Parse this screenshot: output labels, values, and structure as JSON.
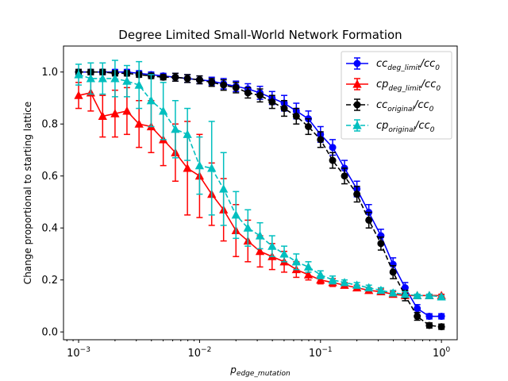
{
  "chart_data": {
    "type": "line",
    "title": "Degree Limited Small-World Network Formation",
    "xlabel": "p",
    "xlabel_sub": "edge_mutation",
    "ylabel": "Change proportional to starting lattice",
    "xscale": "log",
    "xlim": [
      0.00075,
      1.35
    ],
    "ylim": [
      -0.03,
      1.1
    ],
    "grid": false,
    "legend_position": "top-right",
    "x_tick_labels": [
      {
        "value": 0.001,
        "base": "10",
        "exp": "−3"
      },
      {
        "value": 0.01,
        "base": "10",
        "exp": "−2"
      },
      {
        "value": 0.1,
        "base": "10",
        "exp": "−1"
      },
      {
        "value": 1,
        "base": "10",
        "exp": "0"
      }
    ],
    "y_ticks": [
      0.0,
      0.2,
      0.4,
      0.6,
      0.8,
      1.0
    ],
    "y_tick_labels": [
      "0.0",
      "0.2",
      "0.4",
      "0.6",
      "0.8",
      "1.0"
    ],
    "x": [
      0.001,
      0.00126,
      0.00158,
      0.002,
      0.00251,
      0.00316,
      0.00398,
      0.00501,
      0.00631,
      0.00794,
      0.01,
      0.0126,
      0.0158,
      0.02,
      0.0251,
      0.0316,
      0.0398,
      0.0501,
      0.0631,
      0.0794,
      0.1,
      0.126,
      0.158,
      0.2,
      0.251,
      0.316,
      0.398,
      0.501,
      0.631,
      0.794,
      1.0
    ],
    "series": [
      {
        "legend_main": "cc",
        "legend_sub": "deg_limit",
        "legend_tail": "/cc",
        "legend_tail_sub": "0",
        "color": "#0000ff",
        "marker": "circle",
        "linestyle": "solid",
        "y": [
          1.0,
          1.0,
          1.0,
          1.0,
          1.0,
          0.995,
          0.99,
          0.985,
          0.98,
          0.975,
          0.97,
          0.965,
          0.955,
          0.945,
          0.935,
          0.92,
          0.9,
          0.88,
          0.85,
          0.82,
          0.76,
          0.71,
          0.63,
          0.55,
          0.46,
          0.37,
          0.26,
          0.17,
          0.09,
          0.06,
          0.06
        ],
        "err": [
          0.01,
          0.01,
          0.01,
          0.01,
          0.01,
          0.01,
          0.01,
          0.01,
          0.015,
          0.015,
          0.015,
          0.015,
          0.02,
          0.02,
          0.02,
          0.025,
          0.025,
          0.03,
          0.03,
          0.03,
          0.03,
          0.03,
          0.03,
          0.03,
          0.03,
          0.025,
          0.025,
          0.02,
          0.015,
          0.01,
          0.01
        ]
      },
      {
        "legend_main": "cp",
        "legend_sub": "deg_limit",
        "legend_tail": "/cc",
        "legend_tail_sub": "0",
        "color": "#ff0000",
        "marker": "triangle",
        "linestyle": "solid",
        "y": [
          0.91,
          0.92,
          0.83,
          0.84,
          0.85,
          0.8,
          0.79,
          0.74,
          0.69,
          0.63,
          0.6,
          0.53,
          0.47,
          0.39,
          0.35,
          0.31,
          0.29,
          0.27,
          0.24,
          0.22,
          0.2,
          0.19,
          0.18,
          0.17,
          0.16,
          0.155,
          0.145,
          0.14,
          0.14,
          0.14,
          0.14
        ],
        "err": [
          0.05,
          0.07,
          0.08,
          0.09,
          0.09,
          0.09,
          0.1,
          0.1,
          0.11,
          0.18,
          0.16,
          0.12,
          0.12,
          0.1,
          0.08,
          0.06,
          0.05,
          0.04,
          0.03,
          0.02,
          0.015,
          0.015,
          0.01,
          0.01,
          0.01,
          0.01,
          0.01,
          0.01,
          0.005,
          0.005,
          0.005
        ]
      },
      {
        "legend_main": "cc",
        "legend_sub": "original",
        "legend_tail": "/cc",
        "legend_tail_sub": "0",
        "color": "#000000",
        "marker": "circle",
        "linestyle": "dashed",
        "y": [
          1.0,
          1.0,
          1.0,
          0.995,
          0.995,
          0.99,
          0.985,
          0.98,
          0.98,
          0.975,
          0.97,
          0.96,
          0.95,
          0.94,
          0.92,
          0.91,
          0.885,
          0.86,
          0.83,
          0.79,
          0.74,
          0.66,
          0.6,
          0.53,
          0.43,
          0.34,
          0.23,
          0.14,
          0.06,
          0.025,
          0.02
        ],
        "err": [
          0.01,
          0.01,
          0.01,
          0.01,
          0.01,
          0.01,
          0.01,
          0.01,
          0.015,
          0.015,
          0.015,
          0.015,
          0.02,
          0.02,
          0.02,
          0.025,
          0.025,
          0.03,
          0.03,
          0.03,
          0.03,
          0.03,
          0.03,
          0.03,
          0.03,
          0.025,
          0.025,
          0.02,
          0.015,
          0.01,
          0.01
        ]
      },
      {
        "legend_main": "cp",
        "legend_sub": "original",
        "legend_tail": "/cc",
        "legend_tail_sub": "0",
        "color": "#00bfbf",
        "marker": "triangle",
        "linestyle": "dashed",
        "y": [
          0.99,
          0.975,
          0.975,
          0.975,
          0.965,
          0.95,
          0.89,
          0.85,
          0.78,
          0.76,
          0.64,
          0.63,
          0.55,
          0.45,
          0.4,
          0.37,
          0.33,
          0.3,
          0.27,
          0.25,
          0.22,
          0.2,
          0.19,
          0.18,
          0.17,
          0.16,
          0.15,
          0.145,
          0.14,
          0.14,
          0.135
        ],
        "err": [
          0.04,
          0.06,
          0.06,
          0.07,
          0.06,
          0.09,
          0.1,
          0.11,
          0.11,
          0.1,
          0.11,
          0.18,
          0.14,
          0.09,
          0.07,
          0.05,
          0.04,
          0.03,
          0.03,
          0.02,
          0.015,
          0.015,
          0.01,
          0.01,
          0.01,
          0.01,
          0.01,
          0.01,
          0.005,
          0.005,
          0.005
        ]
      }
    ]
  }
}
